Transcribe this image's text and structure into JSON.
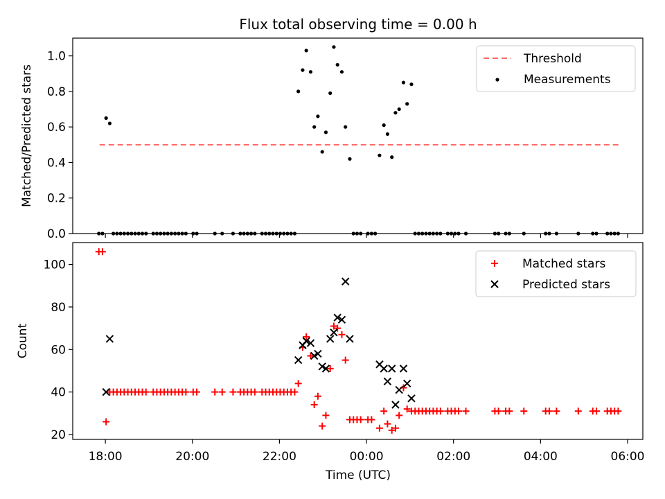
{
  "title": "Flux total observing time = 0.00 h",
  "xlabel": "Time (UTC)",
  "x_ticks": [
    "18:00",
    "20:00",
    "22:00",
    "00:00",
    "02:00",
    "04:00",
    "06:00"
  ],
  "x_tick_hours": [
    18,
    20,
    22,
    24,
    26,
    28,
    30
  ],
  "x_range_hours": [
    17.25,
    30.35
  ],
  "chart_data": [
    {
      "type": "scatter",
      "ylabel": "Matched/Predicted stars",
      "ylim": [
        0,
        1.1
      ],
      "y_ticks": [
        "0.0",
        "0.2",
        "0.4",
        "0.6",
        "0.8",
        "1.0"
      ],
      "y_tick_values": [
        0,
        0.2,
        0.4,
        0.6,
        0.8,
        1.0
      ],
      "legend_position": "top-right",
      "threshold": {
        "name": "Threshold",
        "value": 0.5,
        "x_start": "17:52",
        "x_end": "05:48",
        "color": "#ff6666"
      },
      "series": [
        {
          "name": "Measurements",
          "color": "#000000",
          "points": [
            [
              "17:51",
              0
            ],
            [
              "17:56",
              0
            ],
            [
              "18:01",
              0.65
            ],
            [
              "18:06",
              0.62
            ],
            [
              "18:11",
              0
            ],
            [
              "18:16",
              0
            ],
            [
              "18:21",
              0
            ],
            [
              "18:26",
              0
            ],
            [
              "18:31",
              0
            ],
            [
              "18:36",
              0
            ],
            [
              "18:41",
              0
            ],
            [
              "18:46",
              0
            ],
            [
              "18:51",
              0
            ],
            [
              "18:56",
              0
            ],
            [
              "19:06",
              0
            ],
            [
              "19:11",
              0
            ],
            [
              "19:16",
              0
            ],
            [
              "19:21",
              0
            ],
            [
              "19:26",
              0
            ],
            [
              "19:31",
              0
            ],
            [
              "19:36",
              0
            ],
            [
              "19:41",
              0
            ],
            [
              "19:46",
              0
            ],
            [
              "19:51",
              0
            ],
            [
              "20:01",
              0
            ],
            [
              "20:06",
              0
            ],
            [
              "20:31",
              0
            ],
            [
              "20:41",
              0
            ],
            [
              "20:56",
              0
            ],
            [
              "21:06",
              0
            ],
            [
              "21:11",
              0
            ],
            [
              "21:16",
              0
            ],
            [
              "21:21",
              0
            ],
            [
              "21:26",
              0
            ],
            [
              "21:36",
              0
            ],
            [
              "21:41",
              0
            ],
            [
              "21:46",
              0
            ],
            [
              "21:51",
              0
            ],
            [
              "21:56",
              0
            ],
            [
              "22:01",
              0
            ],
            [
              "22:06",
              0
            ],
            [
              "22:11",
              0
            ],
            [
              "22:16",
              0
            ],
            [
              "22:21",
              0
            ],
            [
              "22:26",
              0.8
            ],
            [
              "22:32",
              0.92
            ],
            [
              "22:37",
              1.03
            ],
            [
              "22:43",
              0.91
            ],
            [
              "22:48",
              0.6
            ],
            [
              "22:53",
              0.66
            ],
            [
              "22:59",
              0.46
            ],
            [
              "23:04",
              0.57
            ],
            [
              "23:10",
              0.79
            ],
            [
              "23:15",
              1.05
            ],
            [
              "23:20",
              0.95
            ],
            [
              "23:26",
              0.91
            ],
            [
              "23:31",
              0.6
            ],
            [
              "23:37",
              0.42
            ],
            [
              "23:42",
              0
            ],
            [
              "23:47",
              0
            ],
            [
              "23:52",
              0
            ],
            [
              "00:02",
              0
            ],
            [
              "00:07",
              0
            ],
            [
              "00:12",
              0
            ],
            [
              "00:18",
              0.44
            ],
            [
              "00:24",
              0.61
            ],
            [
              "00:29",
              0.56
            ],
            [
              "00:35",
              0.43
            ],
            [
              "00:40",
              0.68
            ],
            [
              "00:45",
              0.7
            ],
            [
              "00:51",
              0.85
            ],
            [
              "00:56",
              0.73
            ],
            [
              "01:02",
              0.84
            ],
            [
              "01:07",
              0
            ],
            [
              "01:12",
              0
            ],
            [
              "01:17",
              0
            ],
            [
              "01:22",
              0
            ],
            [
              "01:27",
              0
            ],
            [
              "01:32",
              0
            ],
            [
              "01:37",
              0
            ],
            [
              "01:42",
              0
            ],
            [
              "01:52",
              0
            ],
            [
              "01:57",
              0
            ],
            [
              "02:02",
              0
            ],
            [
              "02:07",
              0
            ],
            [
              "02:17",
              0
            ],
            [
              "02:57",
              0
            ],
            [
              "03:02",
              0
            ],
            [
              "03:12",
              0
            ],
            [
              "03:17",
              0
            ],
            [
              "03:37",
              0
            ],
            [
              "04:07",
              0
            ],
            [
              "04:12",
              0
            ],
            [
              "04:22",
              0
            ],
            [
              "04:52",
              0
            ],
            [
              "05:12",
              0
            ],
            [
              "05:17",
              0
            ],
            [
              "05:32",
              0
            ],
            [
              "05:37",
              0
            ],
            [
              "05:42",
              0
            ],
            [
              "05:47",
              0
            ]
          ]
        }
      ]
    },
    {
      "type": "scatter",
      "ylabel": "Count",
      "ylim": [
        17.7,
        110.3
      ],
      "y_ticks": [
        "20",
        "40",
        "60",
        "80",
        "100"
      ],
      "y_tick_values": [
        20,
        40,
        60,
        80,
        100
      ],
      "legend_position": "top-right",
      "series": [
        {
          "name": "Matched stars",
          "marker": "plus",
          "color": "#ff0000",
          "points": [
            [
              "17:51",
              106
            ],
            [
              "17:56",
              106
            ],
            [
              "18:01",
              26
            ],
            [
              "18:06",
              40
            ],
            [
              "18:11",
              40
            ],
            [
              "18:16",
              40
            ],
            [
              "18:21",
              40
            ],
            [
              "18:26",
              40
            ],
            [
              "18:31",
              40
            ],
            [
              "18:36",
              40
            ],
            [
              "18:41",
              40
            ],
            [
              "18:46",
              40
            ],
            [
              "18:51",
              40
            ],
            [
              "18:56",
              40
            ],
            [
              "19:06",
              40
            ],
            [
              "19:11",
              40
            ],
            [
              "19:16",
              40
            ],
            [
              "19:21",
              40
            ],
            [
              "19:26",
              40
            ],
            [
              "19:31",
              40
            ],
            [
              "19:36",
              40
            ],
            [
              "19:41",
              40
            ],
            [
              "19:46",
              40
            ],
            [
              "19:51",
              40
            ],
            [
              "20:01",
              40
            ],
            [
              "20:06",
              40
            ],
            [
              "20:31",
              40
            ],
            [
              "20:41",
              40
            ],
            [
              "20:56",
              40
            ],
            [
              "21:06",
              40
            ],
            [
              "21:11",
              40
            ],
            [
              "21:16",
              40
            ],
            [
              "21:21",
              40
            ],
            [
              "21:26",
              40
            ],
            [
              "21:36",
              40
            ],
            [
              "21:41",
              40
            ],
            [
              "21:46",
              40
            ],
            [
              "21:51",
              40
            ],
            [
              "21:56",
              40
            ],
            [
              "22:01",
              40
            ],
            [
              "22:06",
              40
            ],
            [
              "22:11",
              40
            ],
            [
              "22:16",
              40
            ],
            [
              "22:21",
              40
            ],
            [
              "22:26",
              44
            ],
            [
              "22:32",
              61
            ],
            [
              "22:37",
              66
            ],
            [
              "22:43",
              57
            ],
            [
              "22:48",
              34
            ],
            [
              "22:53",
              38
            ],
            [
              "22:59",
              24
            ],
            [
              "23:04",
              29
            ],
            [
              "23:10",
              51
            ],
            [
              "23:15",
              71
            ],
            [
              "23:20",
              70
            ],
            [
              "23:26",
              67
            ],
            [
              "23:31",
              55
            ],
            [
              "23:37",
              27
            ],
            [
              "23:42",
              27
            ],
            [
              "23:47",
              27
            ],
            [
              "23:52",
              27
            ],
            [
              "00:02",
              27
            ],
            [
              "00:07",
              27
            ],
            [
              "00:18",
              23
            ],
            [
              "00:24",
              31
            ],
            [
              "00:29",
              25
            ],
            [
              "00:35",
              22
            ],
            [
              "00:40",
              23
            ],
            [
              "00:45",
              29
            ],
            [
              "00:51",
              42
            ],
            [
              "00:56",
              32
            ],
            [
              "01:02",
              31
            ],
            [
              "01:07",
              31
            ],
            [
              "01:12",
              31
            ],
            [
              "01:17",
              31
            ],
            [
              "01:22",
              31
            ],
            [
              "01:27",
              31
            ],
            [
              "01:32",
              31
            ],
            [
              "01:37",
              31
            ],
            [
              "01:42",
              31
            ],
            [
              "01:52",
              31
            ],
            [
              "01:57",
              31
            ],
            [
              "02:02",
              31
            ],
            [
              "02:07",
              31
            ],
            [
              "02:17",
              31
            ],
            [
              "02:57",
              31
            ],
            [
              "03:02",
              31
            ],
            [
              "03:12",
              31
            ],
            [
              "03:17",
              31
            ],
            [
              "03:37",
              31
            ],
            [
              "04:07",
              31
            ],
            [
              "04:12",
              31
            ],
            [
              "04:22",
              31
            ],
            [
              "04:52",
              31
            ],
            [
              "05:12",
              31
            ],
            [
              "05:17",
              31
            ],
            [
              "05:32",
              31
            ],
            [
              "05:37",
              31
            ],
            [
              "05:42",
              31
            ],
            [
              "05:47",
              31
            ]
          ]
        },
        {
          "name": "Predicted stars",
          "marker": "x",
          "color": "#000000",
          "points": [
            [
              "18:01",
              40
            ],
            [
              "18:06",
              65
            ],
            [
              "22:26",
              55
            ],
            [
              "22:32",
              62
            ],
            [
              "22:37",
              64
            ],
            [
              "22:43",
              63
            ],
            [
              "22:48",
              57
            ],
            [
              "22:53",
              58
            ],
            [
              "22:59",
              52
            ],
            [
              "23:04",
              51
            ],
            [
              "23:10",
              65
            ],
            [
              "23:15",
              68
            ],
            [
              "23:20",
              75
            ],
            [
              "23:26",
              74
            ],
            [
              "23:31",
              92
            ],
            [
              "23:37",
              65
            ],
            [
              "00:18",
              53
            ],
            [
              "00:24",
              51
            ],
            [
              "00:29",
              45
            ],
            [
              "00:35",
              51
            ],
            [
              "00:40",
              34
            ],
            [
              "00:45",
              41
            ],
            [
              "00:51",
              51
            ],
            [
              "00:56",
              44
            ],
            [
              "01:02",
              37
            ]
          ]
        }
      ]
    }
  ]
}
